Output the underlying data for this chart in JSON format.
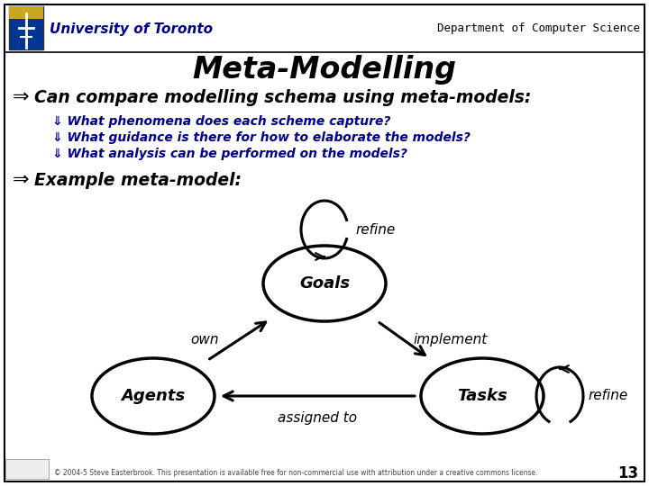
{
  "title": "Meta-Modelling",
  "header_left": "University of Toronto",
  "header_right": "Department of Computer Science",
  "bullet1": "Can compare modelling schema using meta-models:",
  "sub1": "What phenomena does each scheme capture?",
  "sub2": "What guidance is there for how to elaborate the models?",
  "sub3": "What analysis can be performed on the models?",
  "bullet2": "Example meta-model:",
  "node_goals": "Goals",
  "node_agents": "Agents",
  "node_tasks": "Tasks",
  "label_refine_top": "refine",
  "label_implement": "implement",
  "label_own": "own",
  "label_assigned": "assigned to",
  "label_refine_right": "refine",
  "footer": "© 2004-5 Steve Easterbrook. This presentation is available free for non-commercial use with attribution under a creative commons license.",
  "page_num": "13",
  "bg_color": "#ffffff",
  "border_color": "#000000",
  "text_blue": "#00008B",
  "text_black": "#000000",
  "title_color": "#000000"
}
